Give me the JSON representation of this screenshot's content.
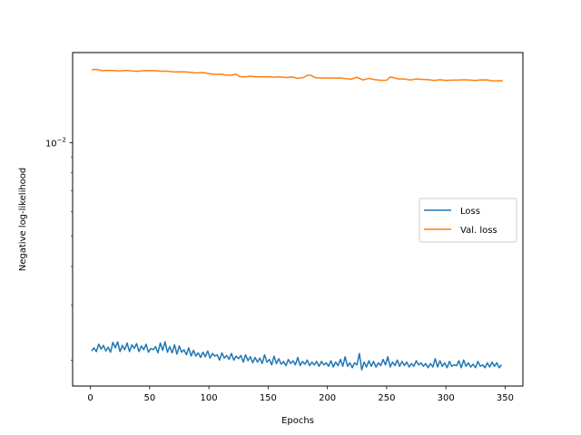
{
  "chart_data": {
    "type": "line",
    "title": "",
    "xlabel": "Epochs",
    "ylabel": "Negative log-likelihood",
    "xscale": "linear",
    "yscale": "log",
    "xlim": [
      -15,
      365
    ],
    "ylim": [
      0.00165,
      0.0195
    ],
    "x_ticks": [
      0,
      50,
      100,
      150,
      200,
      250,
      300,
      350
    ],
    "x_tick_labels": [
      "0",
      "50",
      "100",
      "150",
      "200",
      "250",
      "300",
      "350"
    ],
    "y_major_ticks": [
      0.01
    ],
    "y_tick_base": "10",
    "y_tick_exp": "−2",
    "grid": false,
    "legend_position": "center-right",
    "colors": {
      "loss": "#1f77b4",
      "val_loss": "#ff7f0e"
    },
    "series": [
      {
        "name": "Loss",
        "color": "#1f77b4",
        "x": [
          1,
          3,
          5,
          7,
          9,
          11,
          13,
          15,
          17,
          19,
          21,
          23,
          25,
          27,
          29,
          31,
          33,
          35,
          37,
          39,
          41,
          43,
          45,
          47,
          49,
          51,
          53,
          55,
          57,
          59,
          61,
          63,
          65,
          67,
          69,
          71,
          73,
          75,
          77,
          79,
          81,
          83,
          85,
          87,
          89,
          91,
          93,
          95,
          97,
          99,
          101,
          103,
          105,
          107,
          109,
          111,
          113,
          115,
          117,
          119,
          121,
          123,
          125,
          127,
          129,
          131,
          133,
          135,
          137,
          139,
          141,
          143,
          145,
          147,
          149,
          151,
          153,
          155,
          157,
          159,
          161,
          163,
          165,
          167,
          169,
          171,
          173,
          175,
          177,
          179,
          181,
          183,
          185,
          187,
          189,
          191,
          193,
          195,
          197,
          199,
          201,
          203,
          205,
          207,
          209,
          211,
          213,
          215,
          217,
          219,
          221,
          223,
          225,
          227,
          229,
          231,
          233,
          235,
          237,
          239,
          241,
          243,
          245,
          247,
          249,
          251,
          253,
          255,
          257,
          259,
          261,
          263,
          265,
          267,
          269,
          271,
          273,
          275,
          277,
          279,
          281,
          283,
          285,
          287,
          289,
          291,
          293,
          295,
          297,
          299,
          301,
          303,
          305,
          307,
          309,
          311,
          313,
          315,
          317,
          319,
          321,
          323,
          325,
          327,
          329,
          331,
          333,
          335,
          337,
          339,
          341,
          343,
          345,
          347
        ],
        "y": [
          0.00214,
          0.00219,
          0.00213,
          0.00225,
          0.00217,
          0.00223,
          0.00214,
          0.0022,
          0.00212,
          0.00228,
          0.00219,
          0.00229,
          0.00213,
          0.00223,
          0.00216,
          0.00227,
          0.00213,
          0.00224,
          0.00218,
          0.00226,
          0.00213,
          0.00222,
          0.00216,
          0.00225,
          0.00212,
          0.00218,
          0.00216,
          0.00221,
          0.00211,
          0.00227,
          0.00215,
          0.00229,
          0.00212,
          0.00221,
          0.00211,
          0.00224,
          0.00209,
          0.00222,
          0.00212,
          0.00216,
          0.00208,
          0.00219,
          0.00206,
          0.00215,
          0.00206,
          0.00211,
          0.00204,
          0.00212,
          0.00205,
          0.00214,
          0.00203,
          0.0021,
          0.00206,
          0.00208,
          0.002,
          0.00211,
          0.00203,
          0.00207,
          0.00201,
          0.0021,
          0.002,
          0.00206,
          0.00202,
          0.00207,
          0.00197,
          0.00208,
          0.00199,
          0.00205,
          0.00196,
          0.00204,
          0.00197,
          0.00203,
          0.00195,
          0.00208,
          0.00197,
          0.00201,
          0.00193,
          0.00206,
          0.00195,
          0.00202,
          0.00194,
          0.00198,
          0.00192,
          0.00201,
          0.00195,
          0.00199,
          0.00193,
          0.00204,
          0.00192,
          0.00198,
          0.00194,
          0.002,
          0.00192,
          0.00197,
          0.00193,
          0.00198,
          0.00191,
          0.00198,
          0.00193,
          0.00196,
          0.00191,
          0.00199,
          0.0019,
          0.00197,
          0.00192,
          0.00201,
          0.00191,
          0.00205,
          0.00191,
          0.00196,
          0.00189,
          0.00196,
          0.00193,
          0.0021,
          0.00186,
          0.00197,
          0.0019,
          0.00199,
          0.00191,
          0.00198,
          0.0019,
          0.00196,
          0.00192,
          0.00201,
          0.00193,
          0.00205,
          0.0019,
          0.00197,
          0.00192,
          0.002,
          0.00191,
          0.00198,
          0.00192,
          0.00197,
          0.0019,
          0.00195,
          0.00191,
          0.00199,
          0.00193,
          0.00196,
          0.00191,
          0.00195,
          0.00189,
          0.00195,
          0.0019,
          0.00202,
          0.0019,
          0.00199,
          0.00191,
          0.00196,
          0.00189,
          0.00198,
          0.00191,
          0.00193,
          0.00192,
          0.00199,
          0.00189,
          0.002,
          0.00191,
          0.00196,
          0.0019,
          0.00194,
          0.00189,
          0.00198,
          0.00191,
          0.00193,
          0.00189,
          0.00196,
          0.0019,
          0.00197,
          0.00191,
          0.00196,
          0.00189,
          0.00193
        ]
      },
      {
        "name": "Val. loss",
        "color": "#ff7f0e",
        "x": [
          1,
          5,
          10,
          15,
          20,
          25,
          30,
          35,
          40,
          45,
          50,
          55,
          60,
          65,
          70,
          75,
          80,
          85,
          90,
          95,
          100,
          105,
          110,
          115,
          120,
          123,
          126,
          130,
          135,
          140,
          145,
          150,
          155,
          160,
          165,
          170,
          175,
          180,
          183,
          186,
          190,
          195,
          200,
          205,
          210,
          215,
          220,
          225,
          230,
          235,
          240,
          245,
          250,
          253,
          256,
          260,
          265,
          270,
          275,
          280,
          285,
          290,
          295,
          300,
          305,
          310,
          315,
          320,
          325,
          330,
          335,
          340,
          345,
          348
        ],
        "y": [
          0.01715,
          0.01722,
          0.01705,
          0.0171,
          0.01706,
          0.01702,
          0.01709,
          0.01701,
          0.01698,
          0.01705,
          0.01706,
          0.01705,
          0.01698,
          0.017,
          0.0169,
          0.01691,
          0.0169,
          0.01684,
          0.01676,
          0.01682,
          0.01668,
          0.01658,
          0.01661,
          0.01649,
          0.0165,
          0.01662,
          0.01632,
          0.01629,
          0.01636,
          0.0163,
          0.0163,
          0.01631,
          0.01626,
          0.0163,
          0.0162,
          0.01628,
          0.01611,
          0.01622,
          0.01647,
          0.01648,
          0.01618,
          0.01616,
          0.01614,
          0.01615,
          0.01616,
          0.01609,
          0.01601,
          0.01624,
          0.01593,
          0.0161,
          0.01596,
          0.01588,
          0.01589,
          0.01628,
          0.01619,
          0.01604,
          0.01604,
          0.01591,
          0.01604,
          0.01598,
          0.01596,
          0.01586,
          0.01594,
          0.01586,
          0.01591,
          0.0159,
          0.01594,
          0.01591,
          0.01586,
          0.01593,
          0.01592,
          0.0158,
          0.01584,
          0.01581
        ]
      }
    ]
  }
}
